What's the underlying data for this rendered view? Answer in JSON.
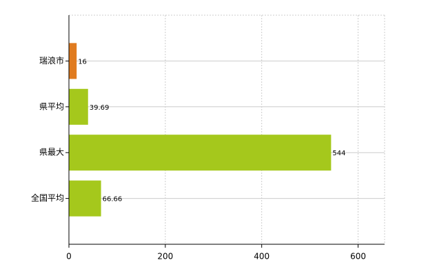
{
  "chart_data": {
    "type": "bar",
    "orientation": "horizontal",
    "categories": [
      "瑞浪市",
      "県平均",
      "県最大",
      "全国平均"
    ],
    "values": [
      16,
      39.69,
      544,
      66.66
    ],
    "colors": [
      "#e07b1f",
      "#a5c81c",
      "#a5c81c",
      "#a5c81c"
    ],
    "xlim": [
      0,
      655
    ],
    "xticks": [
      0,
      200,
      400,
      600
    ],
    "grid": true
  }
}
